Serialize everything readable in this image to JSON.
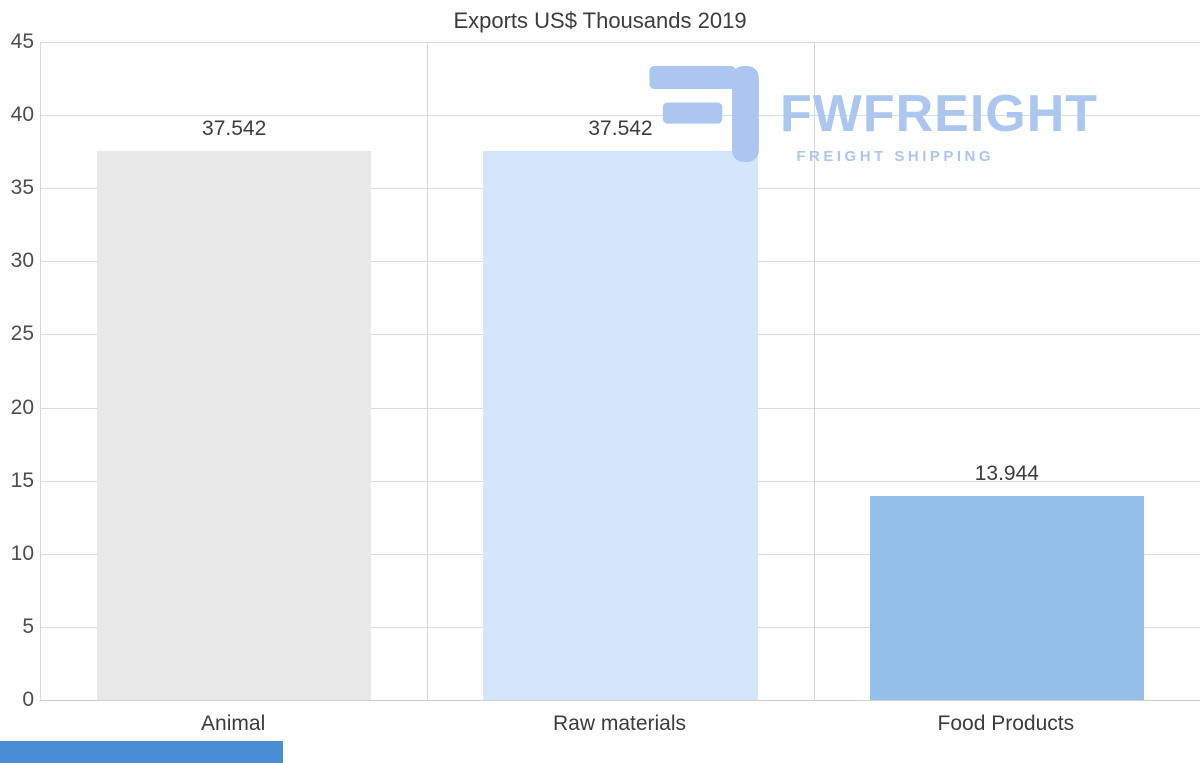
{
  "page": {
    "background": "#ffffff"
  },
  "chart_data": {
    "type": "bar",
    "title": "Exports US$ Thousands 2019",
    "categories": [
      "Animal",
      "Raw materials",
      "Food Products"
    ],
    "values": [
      37.542,
      37.542,
      13.944
    ],
    "value_labels": [
      "37.542",
      "37.542",
      "13.944"
    ],
    "bar_colors": [
      "#e8e8e8",
      "#d4e6f9",
      "#93c0e8"
    ],
    "ylim": [
      0,
      45
    ],
    "ytick_step": 5,
    "ytick_labels": [
      "0",
      "5",
      "10",
      "15",
      "20",
      "25",
      "30",
      "35",
      "40",
      "45"
    ],
    "xlabel": "",
    "ylabel": "",
    "grid": "horizontal lines at each tick, vertical lines at category boundaries",
    "legend": "none"
  },
  "watermark": {
    "brand": "FWFREIGHT",
    "tagline": "FREIGHT SHIPPING",
    "color": "#abc7ef"
  },
  "footer": {
    "strip_color": "#4a8fd3"
  }
}
